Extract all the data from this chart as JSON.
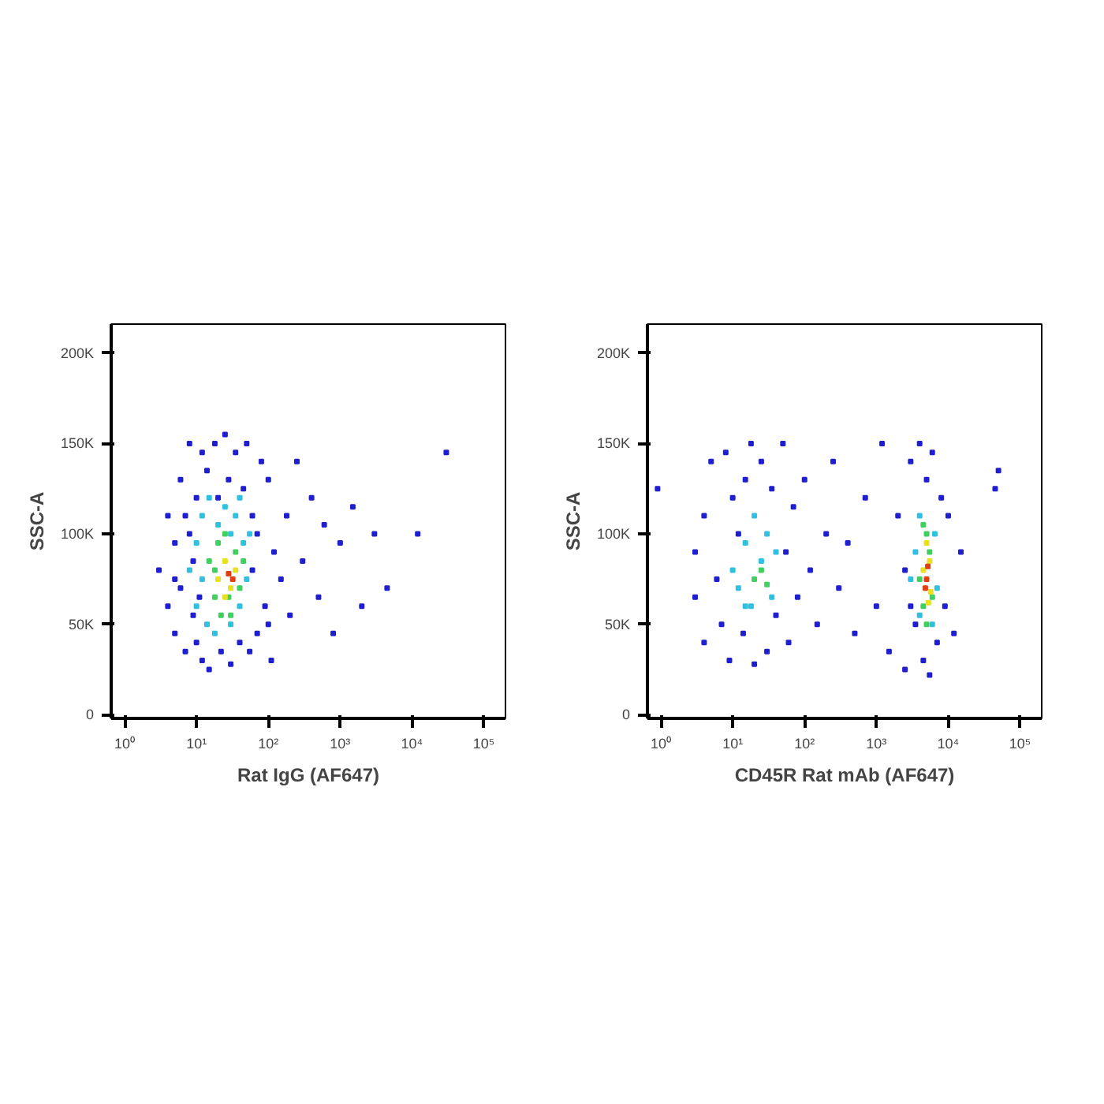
{
  "chart_data": [
    {
      "type": "scatter",
      "xlabel": "Rat IgG (AF647)",
      "ylabel": "SSC-A",
      "log": "x",
      "marker": "square",
      "grid": false,
      "xlim": [
        0.65,
        200000
      ],
      "ylim": [
        -2000,
        216000
      ],
      "xticks": [
        {
          "value": 1,
          "label": "10⁰"
        },
        {
          "value": 10,
          "label": "10¹"
        },
        {
          "value": 100,
          "label": "10²"
        },
        {
          "value": 1000,
          "label": "10³"
        },
        {
          "value": 10000,
          "label": "10⁴"
        },
        {
          "value": 100000,
          "label": "10⁵"
        }
      ],
      "yticks": [
        0,
        {
          "value": 50000,
          "label": "50K"
        },
        {
          "value": 100000,
          "label": "100K"
        },
        {
          "value": 150000,
          "label": "150K"
        },
        {
          "value": 200000,
          "label": "200K"
        }
      ],
      "series": [
        {
          "color": "#1f1fd0",
          "x": [
            3,
            4,
            4,
            5,
            5,
            6,
            6,
            7,
            8,
            8,
            9,
            10,
            10,
            12,
            12,
            14,
            15,
            18,
            20,
            22,
            25,
            28,
            30,
            35,
            40,
            45,
            50,
            55,
            60,
            70,
            80,
            90,
            100,
            110,
            120,
            150,
            180,
            200,
            250,
            300,
            400,
            500,
            600,
            800,
            1000,
            1500,
            2000,
            3000,
            4500,
            12000,
            30000,
            5,
            7,
            9,
            11,
            60,
            70,
            100
          ],
          "values": [
            80000,
            110000,
            60000,
            95000,
            45000,
            130000,
            70000,
            35000,
            150000,
            100000,
            55000,
            120000,
            40000,
            145000,
            30000,
            135000,
            25000,
            150000,
            120000,
            35000,
            155000,
            130000,
            28000,
            145000,
            40000,
            125000,
            150000,
            35000,
            110000,
            45000,
            140000,
            60000,
            130000,
            30000,
            90000,
            75000,
            110000,
            55000,
            140000,
            85000,
            120000,
            65000,
            105000,
            45000,
            95000,
            115000,
            60000,
            100000,
            70000,
            100000,
            145000,
            75000,
            110000,
            85000,
            65000,
            80000,
            100000,
            50000
          ]
        },
        {
          "color": "#30c0e0",
          "x": [
            8,
            10,
            10,
            12,
            14,
            15,
            18,
            20,
            25,
            30,
            35,
            40,
            45,
            50,
            55,
            12,
            40,
            30
          ],
          "values": [
            80000,
            95000,
            60000,
            110000,
            50000,
            120000,
            45000,
            105000,
            115000,
            50000,
            110000,
            60000,
            95000,
            75000,
            100000,
            75000,
            120000,
            100000
          ]
        },
        {
          "color": "#40d060",
          "x": [
            15,
            18,
            20,
            22,
            25,
            28,
            35,
            40,
            45,
            18,
            30
          ],
          "values": [
            85000,
            65000,
            95000,
            55000,
            100000,
            65000,
            90000,
            70000,
            85000,
            80000,
            55000
          ]
        },
        {
          "color": "#e8e020",
          "x": [
            20,
            25,
            30,
            35,
            25
          ],
          "values": [
            75000,
            85000,
            70000,
            80000,
            65000
          ]
        },
        {
          "color": "#e04010",
          "x": [
            28,
            32
          ],
          "values": [
            78000,
            75000
          ]
        }
      ]
    },
    {
      "type": "scatter",
      "xlabel": "CD45R Rat mAb (AF647)",
      "ylabel": "SSC-A",
      "log": "x",
      "marker": "square",
      "grid": false,
      "xlim": [
        0.65,
        200000
      ],
      "ylim": [
        -2000,
        216000
      ],
      "xticks": [
        {
          "value": 1,
          "label": "10⁰"
        },
        {
          "value": 10,
          "label": "10¹"
        },
        {
          "value": 100,
          "label": "10²"
        },
        {
          "value": 1000,
          "label": "10³"
        },
        {
          "value": 10000,
          "label": "10⁴"
        },
        {
          "value": 100000,
          "label": "10⁵"
        }
      ],
      "yticks": [
        0,
        {
          "value": 50000,
          "label": "50K"
        },
        {
          "value": 100000,
          "label": "100K"
        },
        {
          "value": 150000,
          "label": "150K"
        },
        {
          "value": 200000,
          "label": "200K"
        }
      ],
      "series": [
        {
          "color": "#1f1fd0",
          "x": [
            0.9,
            3,
            3,
            4,
            4,
            5,
            6,
            7,
            8,
            9,
            10,
            12,
            14,
            15,
            18,
            20,
            25,
            30,
            35,
            40,
            50,
            55,
            60,
            70,
            80,
            100,
            120,
            150,
            200,
            250,
            300,
            400,
            500,
            700,
            1000,
            1200,
            1500,
            2000,
            2500,
            3000,
            3500,
            4000,
            4500,
            5000,
            5500,
            6000,
            7000,
            8000,
            9000,
            10000,
            12000,
            15000,
            50000,
            45000,
            2500,
            3000
          ],
          "values": [
            125000,
            90000,
            65000,
            110000,
            40000,
            140000,
            75000,
            50000,
            145000,
            30000,
            120000,
            100000,
            45000,
            130000,
            150000,
            28000,
            140000,
            35000,
            125000,
            55000,
            150000,
            90000,
            40000,
            115000,
            65000,
            130000,
            80000,
            50000,
            100000,
            140000,
            70000,
            95000,
            45000,
            120000,
            60000,
            150000,
            35000,
            110000,
            25000,
            140000,
            50000,
            150000,
            30000,
            130000,
            22000,
            145000,
            40000,
            120000,
            60000,
            110000,
            45000,
            90000,
            135000,
            125000,
            80000,
            60000
          ]
        },
        {
          "color": "#30c0e0",
          "x": [
            10,
            12,
            15,
            18,
            20,
            25,
            30,
            35,
            40,
            15,
            3500,
            4000,
            4000,
            6000,
            6500,
            7000,
            3000
          ],
          "values": [
            80000,
            70000,
            95000,
            60000,
            110000,
            85000,
            100000,
            65000,
            90000,
            60000,
            90000,
            55000,
            110000,
            50000,
            100000,
            70000,
            75000
          ]
        },
        {
          "color": "#40d060",
          "x": [
            20,
            25,
            30,
            4000,
            4500,
            5000,
            5500,
            6000,
            4500,
            5000
          ],
          "values": [
            75000,
            80000,
            72000,
            75000,
            60000,
            100000,
            90000,
            65000,
            105000,
            50000
          ]
        },
        {
          "color": "#e8e020",
          "x": [
            4500,
            5700,
            5500,
            5000,
            5300
          ],
          "values": [
            80000,
            68000,
            85000,
            95000,
            62000
          ]
        },
        {
          "color": "#e04010",
          "x": [
            5000,
            5200,
            4800
          ],
          "values": [
            75000,
            82000,
            70000
          ]
        }
      ]
    }
  ]
}
